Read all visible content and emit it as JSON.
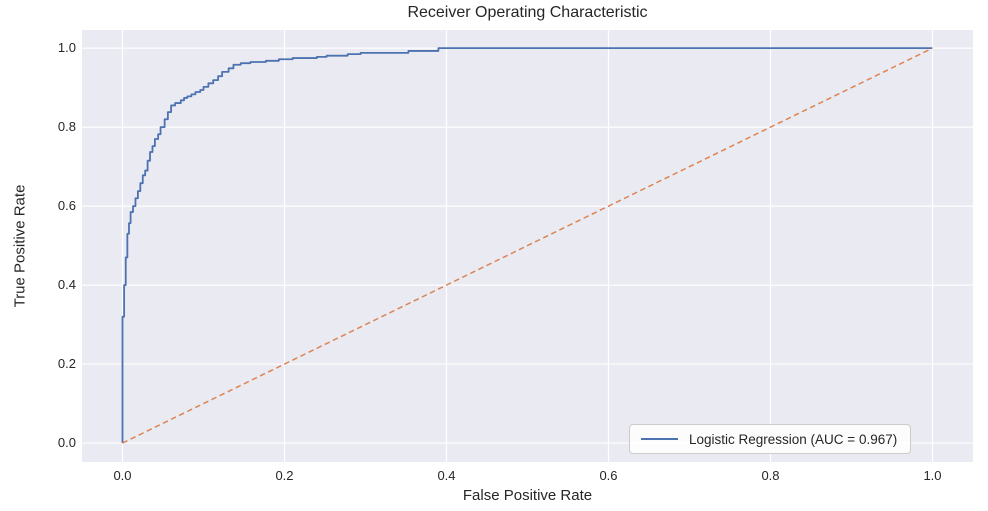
{
  "figure": {
    "background": "#ffffff",
    "axes_background": "#eaeaf2",
    "grid_color": "#ffffff",
    "text_color": "#262626"
  },
  "chart_data": {
    "type": "line",
    "title": "Receiver Operating Characteristic",
    "xlabel": "False Positive Rate",
    "ylabel": "True Positive Rate",
    "xlim": [
      -0.05,
      1.05
    ],
    "ylim": [
      -0.048,
      1.046
    ],
    "grid": true,
    "x_ticks": {
      "values": [
        0.0,
        0.2,
        0.4,
        0.6,
        0.8,
        1.0
      ],
      "labels": [
        "0.0",
        "0.2",
        "0.4",
        "0.6",
        "0.8",
        "1.0"
      ]
    },
    "y_ticks": {
      "values": [
        0.0,
        0.2,
        0.4,
        0.6,
        0.8,
        1.0
      ],
      "labels": [
        "0.0",
        "0.2",
        "0.4",
        "0.6",
        "0.8",
        "1.0"
      ]
    },
    "legend": {
      "position": "lower right",
      "entries": [
        {
          "label": "Logistic Regression (AUC = 0.967)",
          "color": "#4c72b0"
        }
      ]
    },
    "series": [
      {
        "name": "logistic-regression-roc",
        "auc": 0.967,
        "color": "#4c72b0",
        "style": "solid",
        "width": 1.8,
        "points": [
          [
            0,
            0
          ],
          [
            0,
            0.32
          ],
          [
            0.002,
            0.32
          ],
          [
            0.002,
            0.4
          ],
          [
            0.004,
            0.4
          ],
          [
            0.004,
            0.47
          ],
          [
            0.006,
            0.47
          ],
          [
            0.006,
            0.53
          ],
          [
            0.008,
            0.53
          ],
          [
            0.008,
            0.557
          ],
          [
            0.01,
            0.557
          ],
          [
            0.01,
            0.585
          ],
          [
            0.013,
            0.585
          ],
          [
            0.013,
            0.6
          ],
          [
            0.016,
            0.6
          ],
          [
            0.016,
            0.62
          ],
          [
            0.019,
            0.62
          ],
          [
            0.019,
            0.638
          ],
          [
            0.022,
            0.638
          ],
          [
            0.022,
            0.658
          ],
          [
            0.025,
            0.658
          ],
          [
            0.025,
            0.678
          ],
          [
            0.028,
            0.678
          ],
          [
            0.028,
            0.69
          ],
          [
            0.031,
            0.69
          ],
          [
            0.031,
            0.715
          ],
          [
            0.034,
            0.715
          ],
          [
            0.034,
            0.737
          ],
          [
            0.037,
            0.737
          ],
          [
            0.037,
            0.752
          ],
          [
            0.04,
            0.752
          ],
          [
            0.04,
            0.77
          ],
          [
            0.044,
            0.77
          ],
          [
            0.044,
            0.782
          ],
          [
            0.047,
            0.782
          ],
          [
            0.047,
            0.8
          ],
          [
            0.052,
            0.8
          ],
          [
            0.052,
            0.82
          ],
          [
            0.056,
            0.82
          ],
          [
            0.056,
            0.838
          ],
          [
            0.06,
            0.838
          ],
          [
            0.06,
            0.855
          ],
          [
            0.065,
            0.855
          ],
          [
            0.065,
            0.861
          ],
          [
            0.072,
            0.861
          ],
          [
            0.072,
            0.868
          ],
          [
            0.076,
            0.868
          ],
          [
            0.076,
            0.874
          ],
          [
            0.08,
            0.874
          ],
          [
            0.08,
            0.878
          ],
          [
            0.085,
            0.878
          ],
          [
            0.085,
            0.883
          ],
          [
            0.09,
            0.883
          ],
          [
            0.09,
            0.889
          ],
          [
            0.096,
            0.889
          ],
          [
            0.096,
            0.894
          ],
          [
            0.1,
            0.894
          ],
          [
            0.1,
            0.902
          ],
          [
            0.106,
            0.902
          ],
          [
            0.106,
            0.911
          ],
          [
            0.112,
            0.911
          ],
          [
            0.112,
            0.919
          ],
          [
            0.118,
            0.919
          ],
          [
            0.118,
            0.929
          ],
          [
            0.123,
            0.929
          ],
          [
            0.123,
            0.94
          ],
          [
            0.131,
            0.94
          ],
          [
            0.131,
            0.949
          ],
          [
            0.137,
            0.949
          ],
          [
            0.137,
            0.958
          ],
          [
            0.146,
            0.958
          ],
          [
            0.146,
            0.962
          ],
          [
            0.158,
            0.962
          ],
          [
            0.158,
            0.965
          ],
          [
            0.177,
            0.965
          ],
          [
            0.177,
            0.968
          ],
          [
            0.193,
            0.968
          ],
          [
            0.193,
            0.972
          ],
          [
            0.21,
            0.972
          ],
          [
            0.21,
            0.975
          ],
          [
            0.24,
            0.975
          ],
          [
            0.24,
            0.978
          ],
          [
            0.252,
            0.978
          ],
          [
            0.252,
            0.981
          ],
          [
            0.278,
            0.981
          ],
          [
            0.278,
            0.985
          ],
          [
            0.294,
            0.985
          ],
          [
            0.294,
            0.988
          ],
          [
            0.353,
            0.988
          ],
          [
            0.353,
            0.993
          ],
          [
            0.39,
            0.993
          ],
          [
            0.39,
            1.0
          ],
          [
            1.0,
            1.0
          ]
        ]
      },
      {
        "name": "chance-diagonal",
        "color": "#dd8452",
        "style": "dashed",
        "width": 1.5,
        "points": [
          [
            0,
            0
          ],
          [
            1,
            1
          ]
        ]
      }
    ]
  }
}
